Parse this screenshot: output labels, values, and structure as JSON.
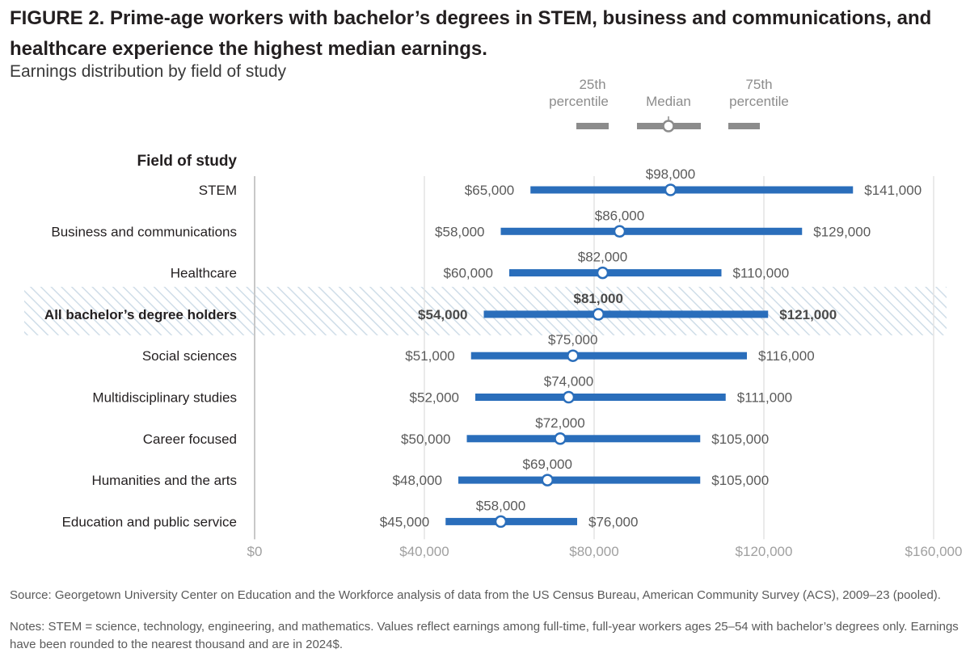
{
  "figure": {
    "title": "FIGURE 2. Prime-age workers with bachelor’s degrees in STEM, business and communications, and healthcare experience the highest median earnings.",
    "subtitle": "Earnings distribution by field of study",
    "source": "Source: Georgetown University Center on Education and the Workforce analysis of data from the US Census Bureau, American Community Survey (ACS), 2009–23 (pooled).",
    "notes": "Notes: STEM = science, technology, engineering, and mathematics. Values reflect earnings among full-time, full-year workers ages 25–54 with bachelor’s degrees only. Earnings have been rounded to the nearest thousand and are in 2024$."
  },
  "chart_data": {
    "type": "range-dot",
    "category_axis_title": "Field of study",
    "legend": {
      "p25": [
        "25th",
        "percentile"
      ],
      "median": "Median",
      "p75": [
        "75th",
        "percentile"
      ],
      "placement": "top-right"
    },
    "x_axis": {
      "min": 0,
      "max": 160000,
      "ticks": [
        0,
        40000,
        80000,
        120000,
        160000
      ],
      "tick_labels": [
        "$0",
        "$40,000",
        "$80,000",
        "$120,000",
        "$160,000"
      ],
      "grid": true
    },
    "categories": [
      {
        "label": "STEM",
        "p25": 65000,
        "median": 98000,
        "p75": 141000,
        "p25_label": "$65,000",
        "median_label": "$98,000",
        "p75_label": "$141,000",
        "highlight": false
      },
      {
        "label": "Business and communications",
        "p25": 58000,
        "median": 86000,
        "p75": 129000,
        "p25_label": "$58,000",
        "median_label": "$86,000",
        "p75_label": "$129,000",
        "highlight": false
      },
      {
        "label": "Healthcare",
        "p25": 60000,
        "median": 82000,
        "p75": 110000,
        "p25_label": "$60,000",
        "median_label": "$82,000",
        "p75_label": "$110,000",
        "highlight": false
      },
      {
        "label": "All bachelor’s degree holders",
        "p25": 54000,
        "median": 81000,
        "p75": 121000,
        "p25_label": "$54,000",
        "median_label": "$81,000",
        "p75_label": "$121,000",
        "highlight": true
      },
      {
        "label": "Social sciences",
        "p25": 51000,
        "median": 75000,
        "p75": 116000,
        "p25_label": "$51,000",
        "median_label": "$75,000",
        "p75_label": "$116,000",
        "highlight": false
      },
      {
        "label": "Multidisciplinary studies",
        "p25": 52000,
        "median": 74000,
        "p75": 111000,
        "p25_label": "$52,000",
        "median_label": "$74,000",
        "p75_label": "$111,000",
        "highlight": false
      },
      {
        "label": "Career focused",
        "p25": 50000,
        "median": 72000,
        "p75": 105000,
        "p25_label": "$50,000",
        "median_label": "$72,000",
        "p75_label": "$105,000",
        "highlight": false
      },
      {
        "label": "Humanities and the arts",
        "p25": 48000,
        "median": 69000,
        "p75": 105000,
        "p25_label": "$48,000",
        "median_label": "$69,000",
        "p75_label": "$105,000",
        "highlight": false
      },
      {
        "label": "Education and public service",
        "p25": 45000,
        "median": 58000,
        "p75": 76000,
        "p25_label": "$45,000",
        "median_label": "$58,000",
        "p75_label": "$76,000",
        "highlight": false
      }
    ],
    "colors": {
      "bar": "#2a6ebb",
      "legend": "#8c8c8c",
      "label": "#5a5a5a",
      "axis": "#a0a0a0",
      "grid": "#e4e4e4",
      "highlight_hatch": "#cfdde8"
    }
  }
}
